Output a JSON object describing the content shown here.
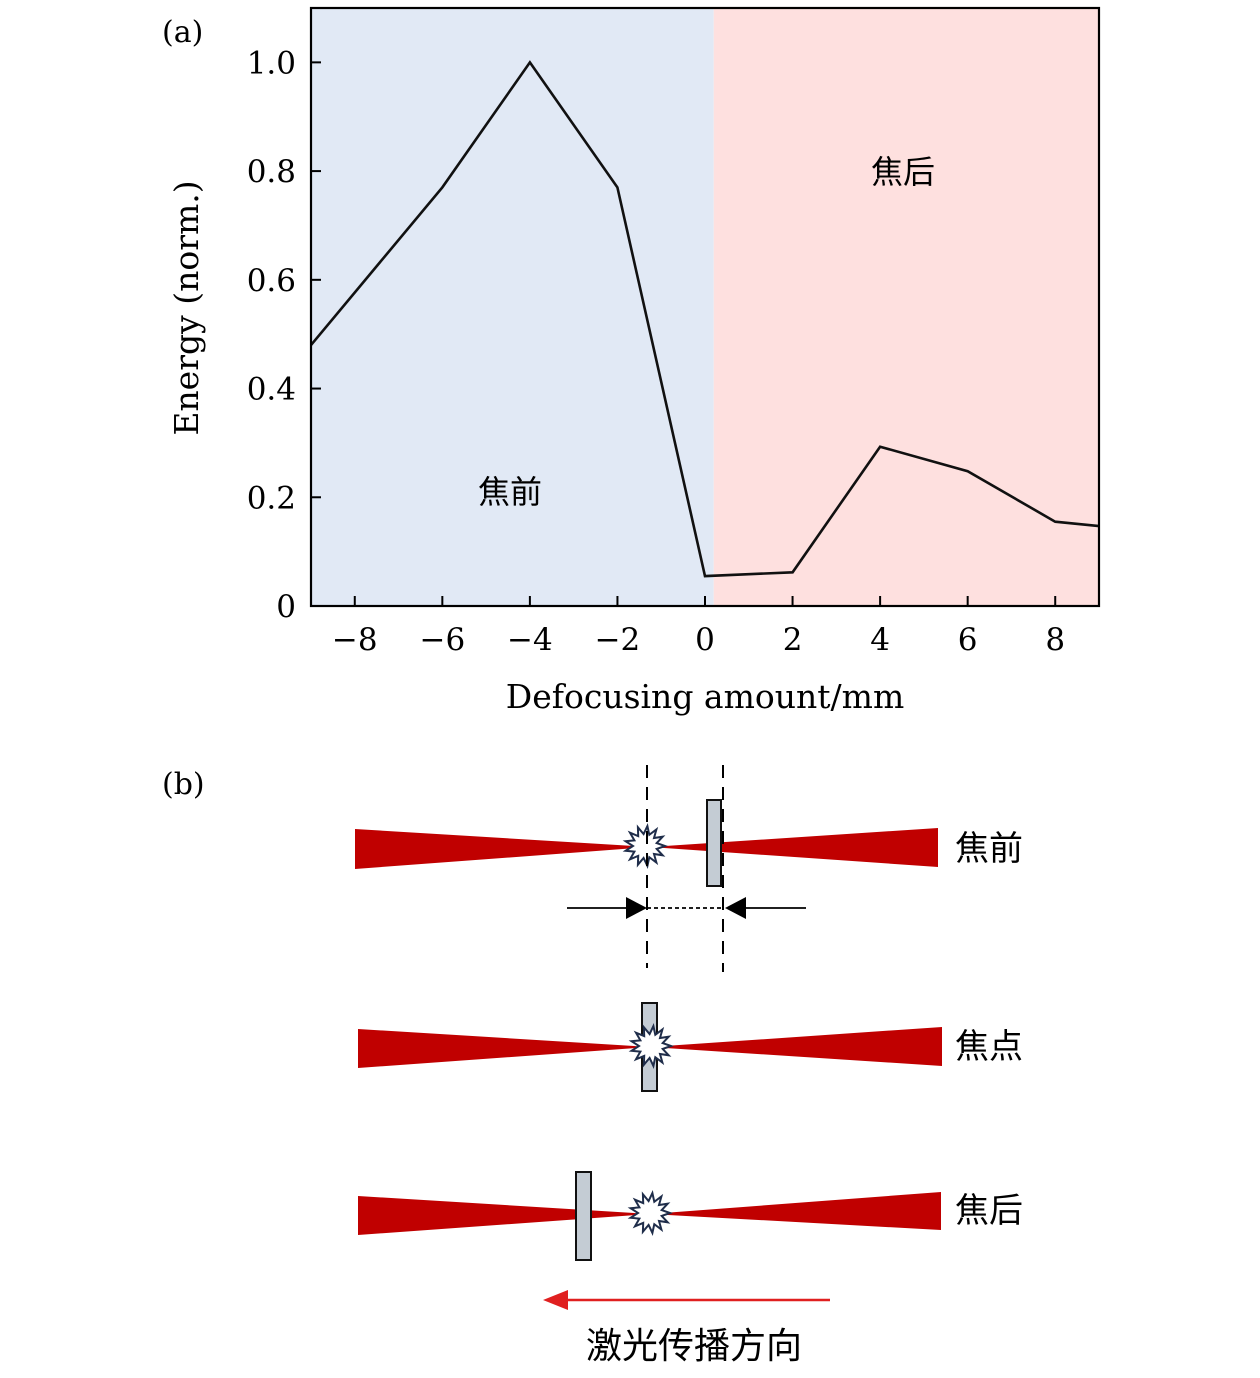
{
  "panel_a": {
    "label": "(a)",
    "region_left_label": "焦前",
    "region_right_label": "焦后",
    "region_left_color": "#e1e9f5",
    "region_right_color": "#fee0df"
  },
  "panel_b": {
    "label": "(b)",
    "row_labels": [
      "焦前",
      "焦点",
      "焦后"
    ],
    "direction_label": "激光传播方向",
    "beam_color": "#c00000",
    "arrow_color": "#e02020",
    "target_color": "#c4ccd4"
  },
  "chart_data": {
    "type": "line",
    "xlabel": "Defocusing amount/mm",
    "ylabel": "Energy (norm.)",
    "xlim": [
      -9,
      9
    ],
    "ylim": [
      0,
      1.1
    ],
    "xticks": [
      -8,
      -6,
      -4,
      -2,
      0,
      2,
      4,
      6,
      8
    ],
    "xtick_labels": [
      "−8",
      "−6",
      "−4",
      "−2",
      "0",
      "2",
      "4",
      "6",
      "8"
    ],
    "yticks": [
      0,
      0.2,
      0.4,
      0.6,
      0.8,
      1.0
    ],
    "ytick_labels": [
      "0",
      "0.2",
      "0.4",
      "0.6",
      "0.8",
      "1.0"
    ],
    "grid": false,
    "series": [
      {
        "x": [
          -9,
          -6,
          -4,
          -2,
          0,
          2,
          4,
          6,
          8,
          9
        ],
        "y": [
          0.48,
          0.77,
          1.0,
          0.77,
          0.055,
          0.062,
          0.293,
          0.248,
          0.155,
          0.147
        ],
        "color": "#111111"
      }
    ],
    "regions": [
      {
        "label": "焦前",
        "x_range": [
          -9,
          0.2
        ]
      },
      {
        "label": "焦后",
        "x_range": [
          0.2,
          9
        ]
      }
    ]
  }
}
